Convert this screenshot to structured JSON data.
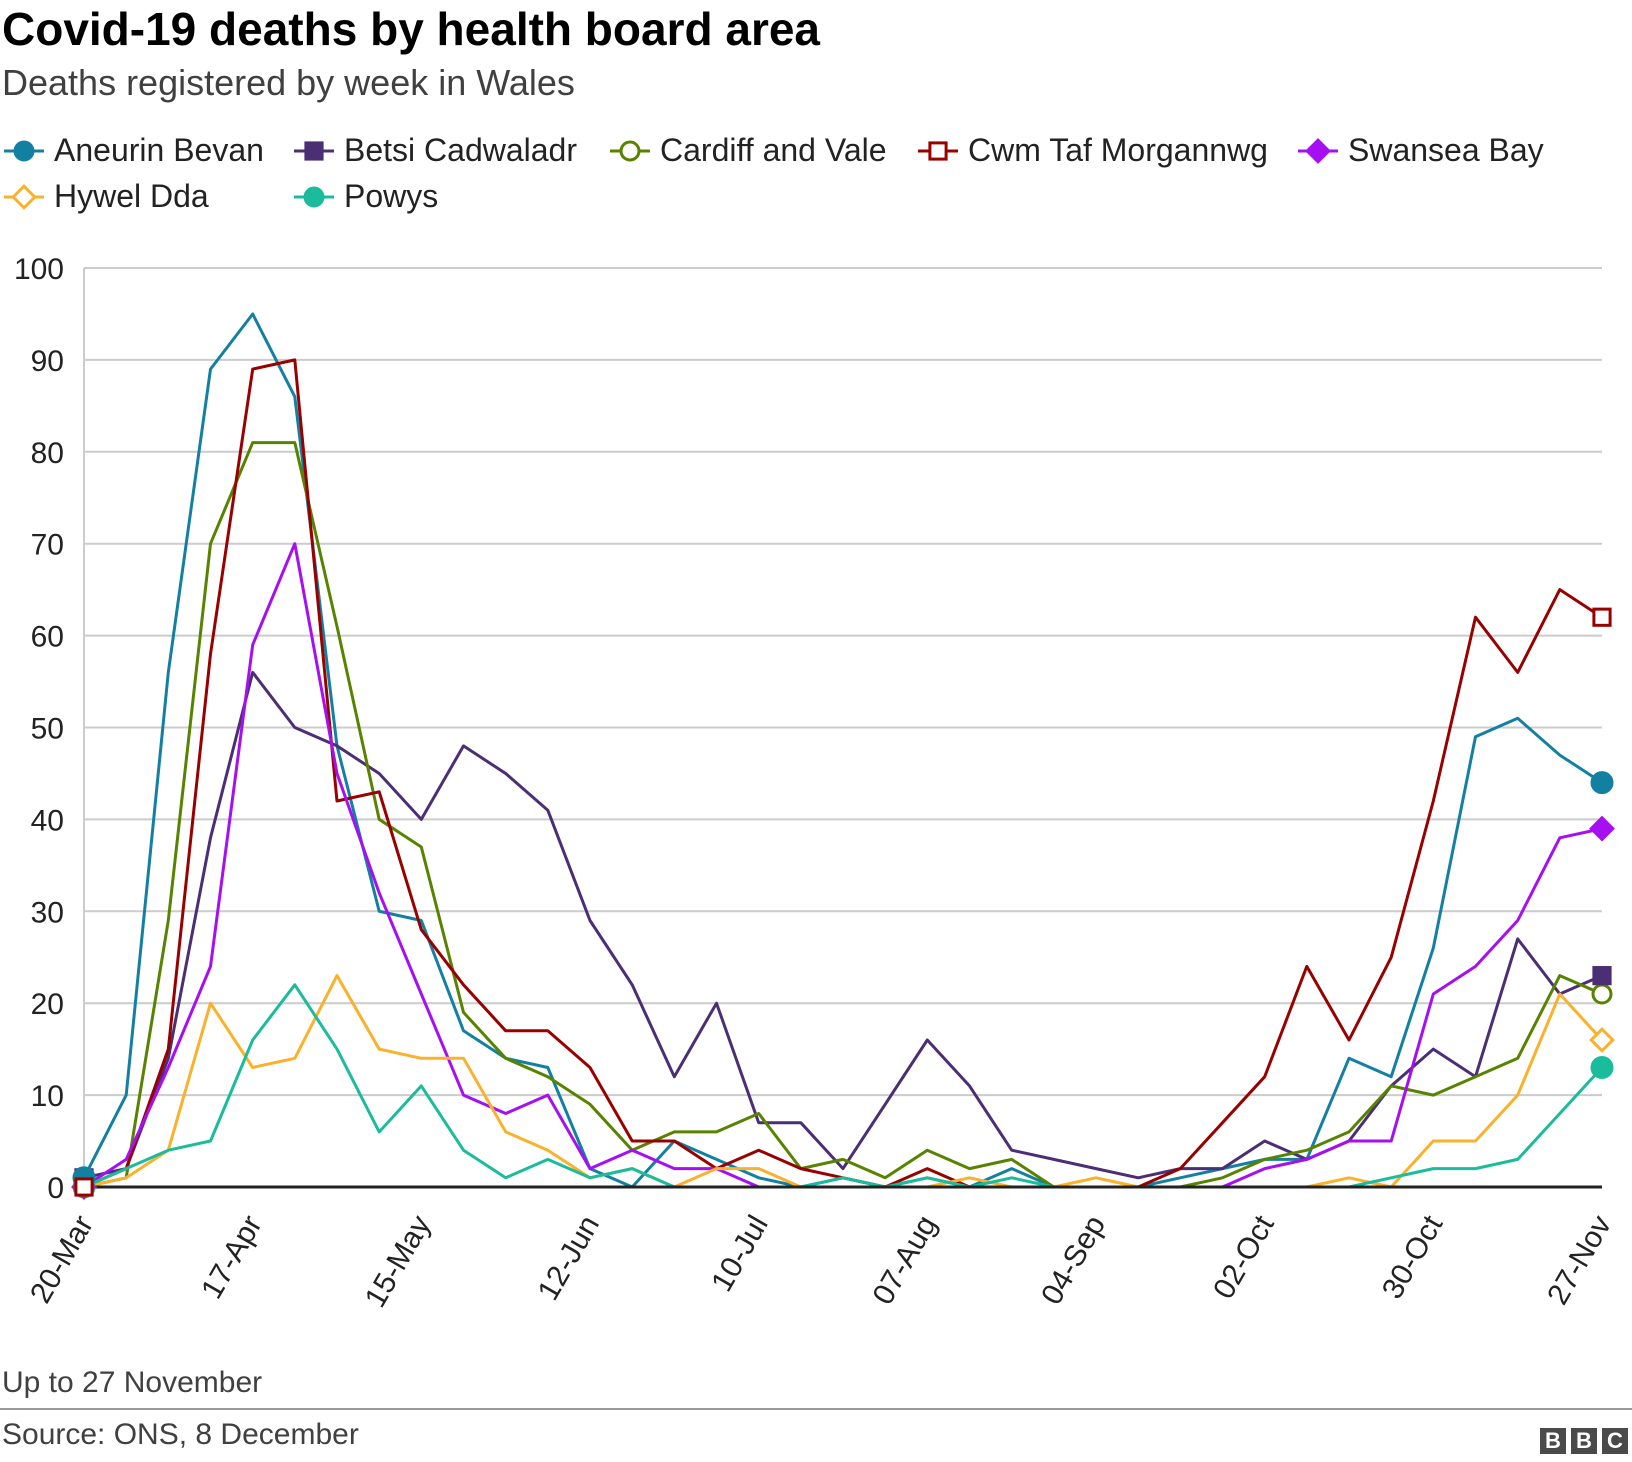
{
  "header": {
    "title": "Covid-19 deaths by health board area",
    "subtitle": "Deaths registered by week in Wales"
  },
  "footer": {
    "note": "Up to 27 November",
    "source": "Source: ONS, 8 December",
    "logo_letters": [
      "B",
      "B",
      "C"
    ]
  },
  "chart_data": {
    "type": "line",
    "title": "Covid-19 deaths by health board area",
    "subtitle": "Deaths registered by week in Wales",
    "xlabel": "",
    "ylabel": "",
    "ylim": [
      0,
      100
    ],
    "yticks": [
      0,
      10,
      20,
      30,
      40,
      50,
      60,
      70,
      80,
      90,
      100
    ],
    "grid": true,
    "legend_position": "top",
    "x": [
      "20-Mar",
      "27-Mar",
      "03-Apr",
      "10-Apr",
      "17-Apr",
      "24-Apr",
      "01-May",
      "08-May",
      "15-May",
      "22-May",
      "29-May",
      "05-Jun",
      "12-Jun",
      "19-Jun",
      "26-Jun",
      "03-Jul",
      "10-Jul",
      "17-Jul",
      "24-Jul",
      "31-Jul",
      "07-Aug",
      "14-Aug",
      "21-Aug",
      "28-Aug",
      "04-Sep",
      "11-Sep",
      "18-Sep",
      "25-Sep",
      "02-Oct",
      "09-Oct",
      "16-Oct",
      "23-Oct",
      "30-Oct",
      "06-Nov",
      "13-Nov",
      "20-Nov",
      "27-Nov"
    ],
    "x_tick_labels": [
      "20-Mar",
      "17-Apr",
      "15-May",
      "12-Jun",
      "10-Jul",
      "07-Aug",
      "04-Sep",
      "02-Oct",
      "30-Oct",
      "27-Nov"
    ],
    "series": [
      {
        "name": "Aneurin Bevan",
        "color": "#1380a1",
        "marker": "filled-circle",
        "values": [
          1,
          10,
          56,
          89,
          95,
          86,
          48,
          30,
          29,
          17,
          14,
          13,
          2,
          0,
          5,
          3,
          1,
          0,
          1,
          0,
          1,
          0,
          2,
          0,
          0,
          0,
          1,
          2,
          3,
          3,
          14,
          12,
          26,
          49,
          51,
          47,
          44
        ]
      },
      {
        "name": "Betsi Cadwaladr",
        "color": "#4b2e73",
        "marker": "filled-square",
        "values": [
          1,
          2,
          14,
          38,
          56,
          50,
          48,
          45,
          40,
          48,
          45,
          41,
          29,
          22,
          12,
          20,
          7,
          7,
          2,
          9,
          16,
          11,
          4,
          3,
          2,
          1,
          2,
          2,
          5,
          3,
          5,
          11,
          15,
          12,
          27,
          21,
          23
        ]
      },
      {
        "name": "Cardiff and Vale",
        "color": "#588300",
        "marker": "open-circle",
        "values": [
          0,
          1,
          29,
          70,
          81,
          81,
          61,
          40,
          37,
          19,
          14,
          12,
          9,
          4,
          6,
          6,
          8,
          2,
          3,
          1,
          4,
          2,
          3,
          0,
          0,
          0,
          0,
          1,
          3,
          4,
          6,
          11,
          10,
          12,
          14,
          23,
          21
        ]
      },
      {
        "name": "Cwm Taf Morgannwg",
        "color": "#990000",
        "marker": "open-square",
        "values": [
          0,
          2,
          15,
          58,
          89,
          90,
          42,
          43,
          28,
          22,
          17,
          17,
          13,
          5,
          5,
          2,
          4,
          2,
          1,
          0,
          2,
          0,
          0,
          0,
          0,
          0,
          2,
          7,
          12,
          24,
          16,
          25,
          42,
          62,
          56,
          65,
          62
        ]
      },
      {
        "name": "Swansea Bay",
        "color": "#a60ff2",
        "marker": "filled-diamond",
        "values": [
          0,
          3,
          13,
          24,
          59,
          70,
          45,
          32,
          21,
          10,
          8,
          10,
          2,
          4,
          2,
          2,
          0,
          0,
          0,
          0,
          0,
          0,
          0,
          0,
          0,
          0,
          0,
          0,
          2,
          3,
          5,
          5,
          21,
          24,
          29,
          38,
          39
        ]
      },
      {
        "name": "Hywel Dda",
        "color": "#fab12c",
        "marker": "open-diamond",
        "values": [
          0,
          1,
          4,
          20,
          13,
          14,
          23,
          15,
          14,
          14,
          6,
          4,
          1,
          2,
          0,
          2,
          2,
          0,
          0,
          0,
          0,
          1,
          0,
          0,
          1,
          0,
          0,
          0,
          0,
          0,
          1,
          0,
          5,
          5,
          10,
          21,
          16
        ]
      },
      {
        "name": "Powys",
        "color": "#1abc9c",
        "marker": "filled-circle",
        "values": [
          0,
          2,
          4,
          5,
          16,
          22,
          15,
          6,
          11,
          4,
          1,
          3,
          1,
          2,
          0,
          0,
          0,
          0,
          1,
          0,
          1,
          0,
          1,
          0,
          0,
          0,
          0,
          0,
          0,
          0,
          0,
          1,
          2,
          2,
          3,
          8,
          13
        ]
      }
    ]
  }
}
